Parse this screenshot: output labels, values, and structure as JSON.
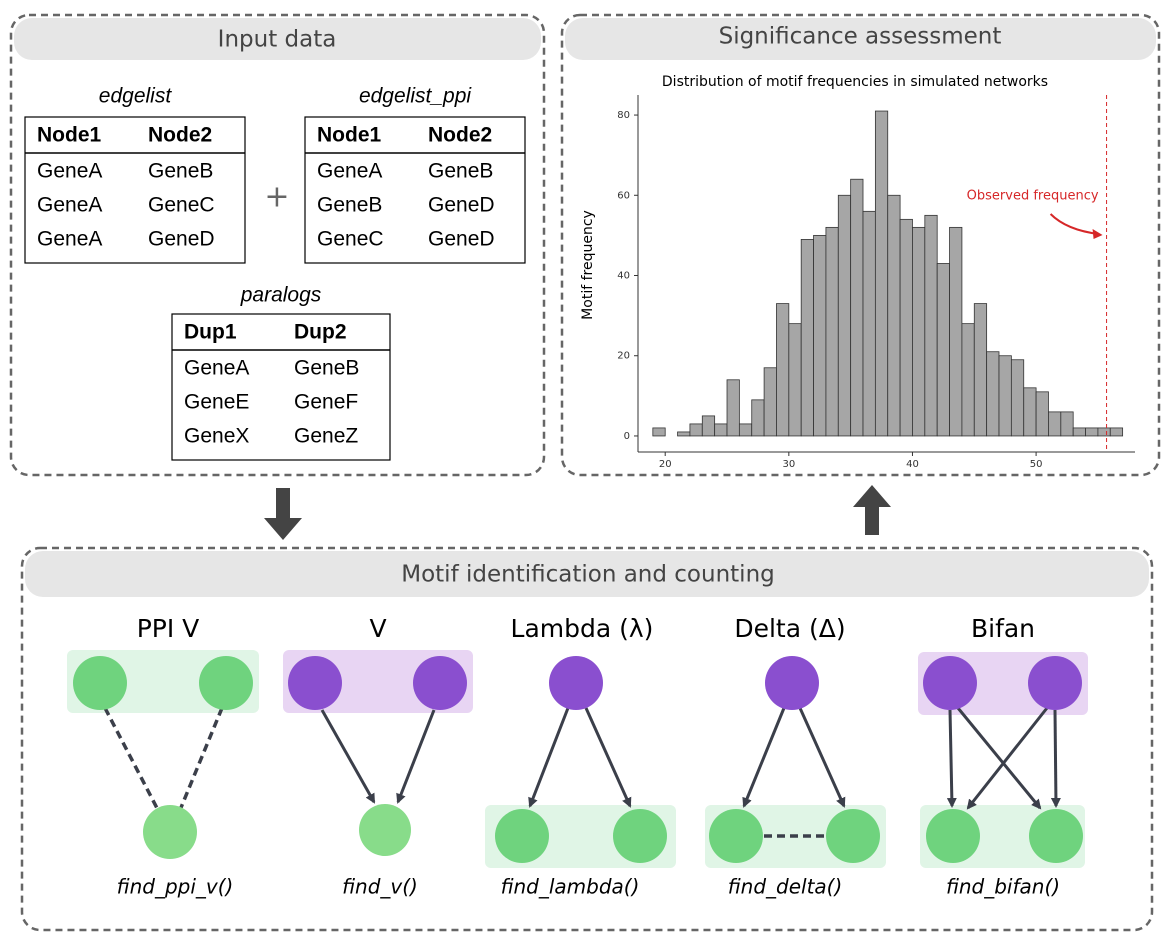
{
  "input_panel": {
    "title": "Input data",
    "tables": [
      {
        "title": "edgelist",
        "header": [
          "Node1",
          "Node2"
        ],
        "rows": [
          [
            "GeneA",
            "GeneB"
          ],
          [
            "GeneA",
            "GeneC"
          ],
          [
            "GeneA",
            "GeneD"
          ]
        ]
      },
      {
        "title": "edgelist_ppi",
        "header": [
          "Node1",
          "Node2"
        ],
        "rows": [
          [
            "GeneA",
            "GeneB"
          ],
          [
            "GeneB",
            "GeneD"
          ],
          [
            "GeneC",
            "GeneD"
          ]
        ]
      },
      {
        "title": "paralogs",
        "header": [
          "Dup1",
          "Dup2"
        ],
        "rows": [
          [
            "GeneA",
            "GeneB"
          ],
          [
            "GeneE",
            "GeneF"
          ],
          [
            "GeneX",
            "GeneZ"
          ]
        ]
      }
    ],
    "operator": "+"
  },
  "significance_panel": {
    "title": "Significance assessment"
  },
  "chart_data": {
    "type": "histogram",
    "title": "Distribution of motif frequencies in simulated networks",
    "y_label": "Motif frequency",
    "bins": [
      19,
      20,
      21,
      22,
      23,
      24,
      25,
      26,
      27,
      28,
      29,
      30,
      31,
      32,
      33,
      34,
      35,
      36,
      37,
      38,
      39,
      40,
      41,
      42,
      43,
      44,
      45,
      46,
      47,
      48,
      49,
      50,
      51,
      52,
      53,
      54,
      55,
      56,
      57
    ],
    "counts": [
      2,
      0,
      1,
      3,
      5,
      3,
      14,
      3,
      9,
      17,
      33,
      28,
      49,
      50,
      52,
      60,
      64,
      56,
      81,
      60,
      54,
      52,
      55,
      43,
      52,
      28,
      33,
      21,
      20,
      19,
      12,
      11,
      6,
      6,
      2,
      2,
      2,
      2
    ],
    "color": "#a6a6a6",
    "xlim": [
      17.8,
      58
    ],
    "ylim": [
      -4,
      85
    ],
    "xticks": [
      20,
      30,
      40,
      50
    ],
    "yticks": [
      0,
      20,
      40,
      60,
      80
    ],
    "observed": 55.7,
    "observed_label": "Observed frequency",
    "observed_color": "#d62728"
  },
  "motif_panel": {
    "title": "Motif identification and counting",
    "motifs": [
      {
        "name": "PPI V",
        "function": "find_ppi_v()"
      },
      {
        "name": "V",
        "function": "find_v()"
      },
      {
        "name": "Lambda (λ)",
        "function": "find_lambda()"
      },
      {
        "name": "Delta (Δ)",
        "function": "find_delta()"
      },
      {
        "name": "Bifan",
        "function": "find_bifan()"
      }
    ]
  }
}
